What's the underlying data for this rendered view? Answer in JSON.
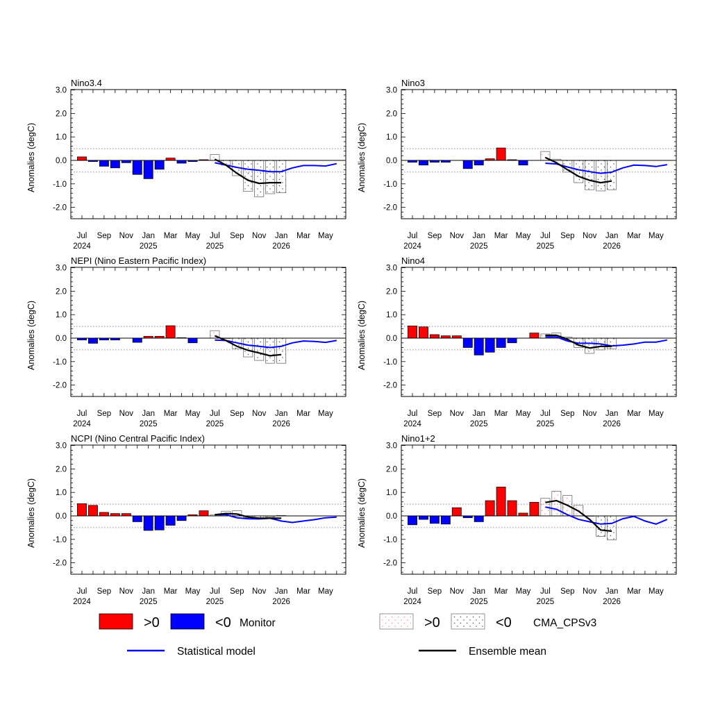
{
  "figure": {
    "panels_order": [
      "nino34",
      "nino3",
      "nepi",
      "nino4",
      "ncpi",
      "nino12"
    ]
  },
  "axis": {
    "ylabel": "Anomalies (degC)",
    "yticks": [
      3.0,
      2.0,
      1.0,
      0.0,
      -1.0,
      -2.0
    ],
    "ytick_labels": [
      "3.0",
      "2.0",
      "1.0",
      "0.0",
      "-1.0",
      "-2.0"
    ],
    "ylim": [
      -2.5,
      3.0
    ],
    "threshold_lines": [
      0.5,
      -0.5
    ],
    "month_ticks": [
      {
        "month": "Jul",
        "year": "2024"
      },
      {
        "month": "Sep",
        "year": ""
      },
      {
        "month": "Nov",
        "year": ""
      },
      {
        "month": "Jan",
        "year": "2025"
      },
      {
        "month": "Mar",
        "year": ""
      },
      {
        "month": "May",
        "year": ""
      },
      {
        "month": "Jul",
        "year": "2025"
      },
      {
        "month": "Sep",
        "year": ""
      },
      {
        "month": "Nov",
        "year": ""
      },
      {
        "month": "Jan",
        "year": "2026"
      },
      {
        "month": "Mar",
        "year": ""
      },
      {
        "month": "May",
        "year": ""
      }
    ]
  },
  "chart_data": [
    {
      "id": "nino34",
      "type": "bar",
      "title": "Nino3.4",
      "x_start": "2024-07",
      "monitor": [
        0.15,
        -0.05,
        -0.25,
        -0.32,
        -0.1,
        -0.6,
        -0.78,
        -0.38,
        0.1,
        -0.12,
        -0.05,
        0.03
      ],
      "forecast_start": "2025-07",
      "cma_cpsv3": [
        0.25,
        -0.2,
        -0.65,
        -1.32,
        -1.55,
        -1.42,
        -1.38
      ],
      "ensemble_mean": [
        0.05,
        -0.2,
        -0.55,
        -0.85,
        -0.98,
        -0.95,
        -0.95
      ],
      "statistical_model": [
        -0.1,
        -0.2,
        -0.3,
        -0.38,
        -0.42,
        -0.48,
        -0.48,
        -0.32,
        -0.22,
        -0.22,
        -0.24,
        -0.14
      ]
    },
    {
      "id": "nino3",
      "type": "bar",
      "title": "Nino3",
      "x_start": "2024-07",
      "monitor": [
        -0.08,
        -0.2,
        -0.08,
        -0.08,
        0.0,
        -0.35,
        -0.2,
        0.07,
        0.53,
        0.03,
        -0.2,
        0.0
      ],
      "forecast_start": "2025-07",
      "cma_cpsv3": [
        0.38,
        0.05,
        -0.5,
        -0.95,
        -1.25,
        -1.3,
        -1.25
      ],
      "ensemble_mean": [
        0.12,
        -0.1,
        -0.4,
        -0.68,
        -0.85,
        -0.95,
        -0.88
      ],
      "statistical_model": [
        -0.12,
        -0.15,
        -0.28,
        -0.4,
        -0.48,
        -0.55,
        -0.5,
        -0.32,
        -0.2,
        -0.22,
        -0.26,
        -0.18
      ]
    },
    {
      "id": "nepi",
      "type": "bar",
      "title": "NEPI (Nino Eastern Pacific Index)",
      "x_start": "2024-07",
      "monitor": [
        -0.08,
        -0.22,
        -0.08,
        -0.08,
        0.0,
        -0.18,
        0.08,
        0.08,
        0.53,
        0.02,
        -0.2,
        0.0
      ],
      "forecast_start": "2025-07",
      "cma_cpsv3": [
        0.32,
        0.0,
        -0.45,
        -0.8,
        -0.95,
        -1.07,
        -1.07
      ],
      "ensemble_mean": [
        0.1,
        -0.1,
        -0.35,
        -0.52,
        -0.63,
        -0.75,
        -0.7
      ],
      "statistical_model": [
        -0.08,
        -0.1,
        -0.2,
        -0.3,
        -0.35,
        -0.4,
        -0.35,
        -0.2,
        -0.12,
        -0.14,
        -0.18,
        -0.1
      ]
    },
    {
      "id": "nino4",
      "type": "bar",
      "title": "Nino4",
      "x_start": "2024-07",
      "monitor": [
        0.52,
        0.48,
        0.15,
        0.1,
        0.1,
        -0.4,
        -0.72,
        -0.6,
        -0.4,
        -0.2,
        0.0,
        0.22
      ],
      "forecast_start": "2025-07",
      "cma_cpsv3": [
        0.18,
        0.22,
        0.05,
        -0.4,
        -0.65,
        -0.5,
        -0.45
      ],
      "ensemble_mean": [
        0.12,
        0.12,
        -0.05,
        -0.3,
        -0.42,
        -0.35,
        -0.35
      ],
      "statistical_model": [
        0.05,
        0.05,
        -0.12,
        -0.22,
        -0.22,
        -0.25,
        -0.33,
        -0.3,
        -0.25,
        -0.17,
        -0.17,
        -0.08
      ]
    },
    {
      "id": "ncpi",
      "type": "bar",
      "title": "NCPI (Nino Central Pacific Index)",
      "x_start": "2024-07",
      "monitor": [
        0.52,
        0.45,
        0.15,
        0.1,
        0.1,
        -0.25,
        -0.62,
        -0.6,
        -0.4,
        -0.2,
        0.05,
        0.22
      ],
      "forecast_start": "2025-07",
      "cma_cpsv3": [
        0.05,
        0.2,
        0.22,
        -0.07,
        -0.12,
        -0.05,
        0.02
      ],
      "ensemble_mean": [
        0.05,
        0.1,
        0.08,
        -0.05,
        -0.1,
        -0.1,
        -0.1
      ],
      "statistical_model": [
        0.05,
        0.05,
        -0.08,
        -0.12,
        -0.13,
        -0.1,
        -0.22,
        -0.28,
        -0.22,
        -0.16,
        -0.08,
        -0.05
      ]
    },
    {
      "id": "nino12",
      "type": "bar",
      "title": "Nino1+2",
      "x_start": "2024-07",
      "monitor": [
        -0.38,
        -0.15,
        -0.32,
        -0.35,
        0.35,
        -0.08,
        -0.25,
        0.65,
        1.23,
        0.65,
        0.12,
        0.58
      ],
      "forecast_start": "2025-07",
      "cma_cpsv3": [
        0.75,
        1.05,
        0.87,
        0.45,
        0.0,
        -0.87,
        -1.02
      ],
      "ensemble_mean": [
        0.57,
        0.65,
        0.45,
        0.2,
        -0.15,
        -0.6,
        -0.65
      ],
      "statistical_model": [
        0.38,
        0.28,
        0.05,
        -0.15,
        -0.25,
        -0.35,
        -0.32,
        -0.12,
        -0.02,
        -0.22,
        -0.35,
        -0.15
      ]
    }
  ],
  "legend": {
    "pos_label": ">0",
    "neg_label": "<0",
    "monitor_label": "Monitor",
    "cma_label": "CMA_CPSv3",
    "statistical_label": "Statistical model",
    "ensemble_label": "Ensemble mean"
  },
  "colors": {
    "positive": "#ff0000",
    "negative": "#0000ff",
    "statistical": "#0000ff",
    "ensemble": "#000000",
    "threshold": "#8a8a8a"
  }
}
